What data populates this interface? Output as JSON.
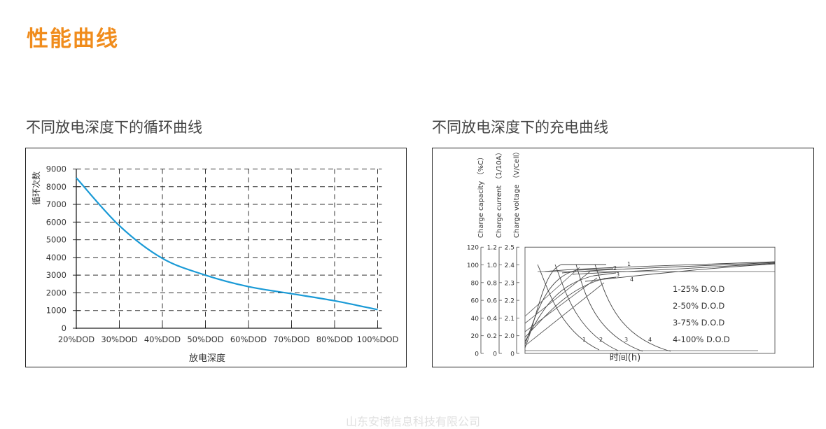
{
  "page": {
    "title": "性能曲线",
    "footer": "山东安博信息科技有限公司"
  },
  "charts": {
    "cycle": {
      "subtitle": "不同放电深度下的循环曲线"
    },
    "charge": {
      "subtitle": "不同放电深度下的充电曲线"
    }
  },
  "colors": {
    "accent": "#f08c1c",
    "curve": "#1a9ad6"
  },
  "chart_data": [
    {
      "type": "line",
      "title": "不同放电深度下的循环曲线",
      "xlabel": "放电深度",
      "ylabel": "循环次数",
      "categories": [
        "20%DOD",
        "30%DOD",
        "40%DOD",
        "50%DOD",
        "60%DOD",
        "70%DOD",
        "80%DOD",
        "100%DOD"
      ],
      "x_pct": [
        20,
        30,
        40,
        50,
        60,
        70,
        80,
        90
      ],
      "yticks": [
        0,
        1000,
        2000,
        3000,
        4000,
        5000,
        6000,
        7000,
        8000,
        9000
      ],
      "ylim": [
        0,
        9000
      ],
      "grid": true,
      "series": [
        {
          "values": [
            8500,
            5800,
            3950,
            3000,
            2350,
            1950,
            1550,
            1050
          ]
        }
      ]
    },
    {
      "type": "line",
      "title": "不同放电深度下的充电曲线",
      "xlabel": "时间(h)",
      "axes": [
        {
          "label": "Charge capacity （%C）",
          "ticks": [
            "0",
            "20",
            "40",
            "60",
            "80",
            "100",
            "120"
          ]
        },
        {
          "label": "Charge current （1/10A）",
          "ticks": [
            "0",
            "0.2",
            "0.4",
            "0.6",
            "0.8",
            "1.0",
            "1.2"
          ]
        },
        {
          "label": "Charge voltage （V/Cell）",
          "ticks": [
            "0",
            "2.0",
            "2.1",
            "2.2",
            "2.3",
            "2.4",
            "2.5"
          ]
        }
      ],
      "curve_labels": [
        "1",
        "2",
        "3",
        "4"
      ],
      "legend": [
        "1-25% D.O.D",
        "2-50% D.O.D",
        "3-75% D.O.D",
        "4-100% D.O.D"
      ],
      "legend_position": "right"
    }
  ]
}
